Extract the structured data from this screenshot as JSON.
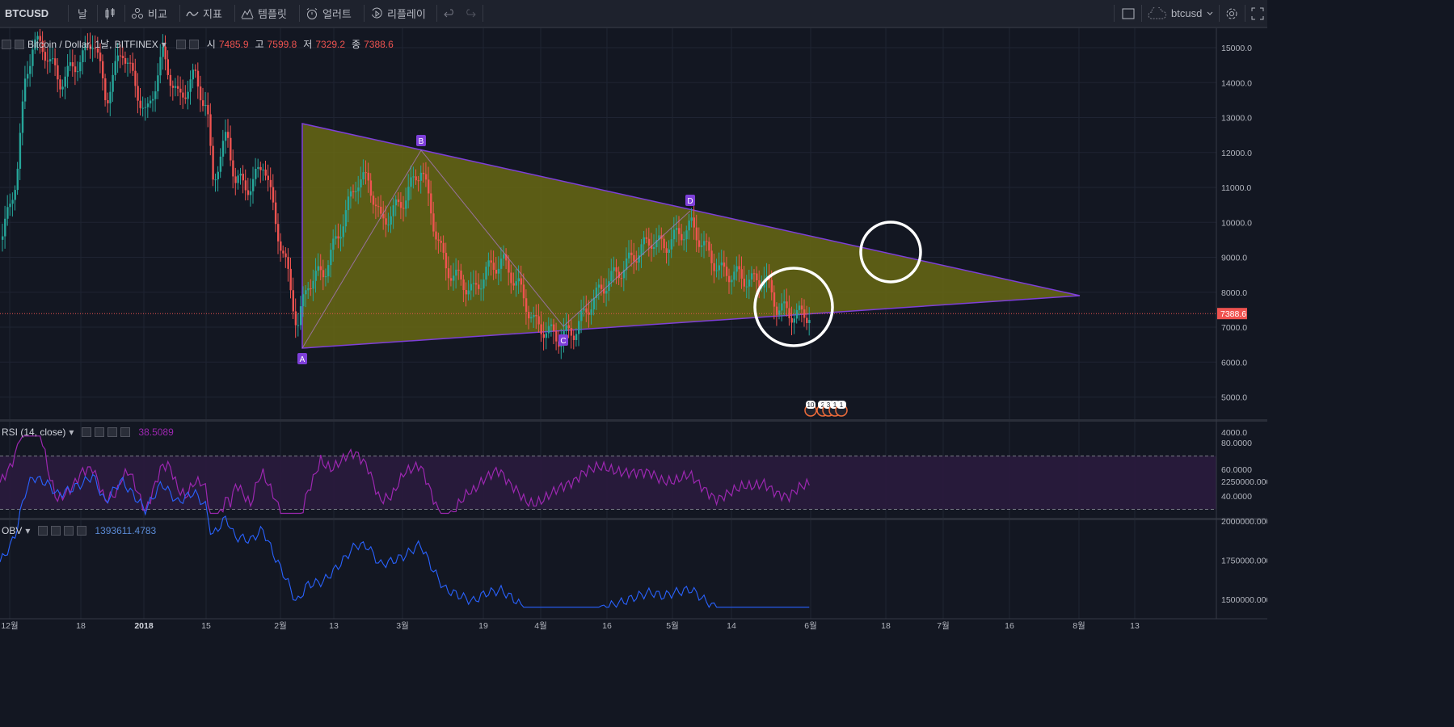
{
  "toolbar": {
    "symbol": "BTCUSD",
    "interval": "날",
    "compare": "비교",
    "indicators": "지표",
    "templates": "템플릿",
    "alerts": "얼러트",
    "replay": "리플레이",
    "account": "btcusd"
  },
  "main_pane": {
    "title": "Bitcoin / Dollar, 1날, BITFINEX",
    "ohlc": [
      {
        "label": "시",
        "value": "7485.9"
      },
      {
        "label": "고",
        "value": "7599.8"
      },
      {
        "label": "저",
        "value": "7329.2"
      },
      {
        "label": "종",
        "value": "7388.6"
      }
    ],
    "price_badge": "7388.6",
    "price_ticks": [
      "15000.0",
      "14000.0",
      "13000.0",
      "12000.0",
      "11000.0",
      "10000.0",
      "9000.0",
      "8000.0",
      "7000.0",
      "6000.0",
      "5000.0",
      "4000.0"
    ],
    "pattern_points": [
      "A",
      "B",
      "C",
      "D"
    ],
    "event_badges": [
      "10",
      "2",
      "3",
      "1",
      "1"
    ]
  },
  "rsi_pane": {
    "title": "RSI (14, close)",
    "value": "38.5089",
    "ticks": [
      "80.0000",
      "60.0000",
      "40.0000"
    ]
  },
  "obv_pane": {
    "title": "OBV",
    "value": "1393611.4783",
    "ticks": [
      "2250000.0000",
      "2000000.0000",
      "1750000.0000",
      "1500000.0000"
    ]
  },
  "time_axis": [
    "12월",
    "18",
    "2018",
    "15",
    "2월",
    "13",
    "3월",
    "19",
    "4월",
    "16",
    "5월",
    "14",
    "6월",
    "18",
    "7월",
    "16",
    "8월",
    "13"
  ],
  "colors": {
    "up": "#26a69a",
    "down": "#ef5350",
    "triangle_fill": "#6b6b12",
    "triangle_line": "#7e3fd9",
    "rsi": "#9c27b0",
    "obv": "#2962ff",
    "background": "#131722"
  },
  "chart_data": {
    "type": "candlestick",
    "title": "Bitcoin / Dollar, 1날, BITFINEX",
    "ylim": [
      4000,
      15200
    ],
    "last_price": 7388.6,
    "pattern": {
      "type": "triangle",
      "points": [
        {
          "label": "A",
          "date": "2018-02-06",
          "price": 6000
        },
        {
          "label": "B",
          "date": "2018-03-05",
          "price": 11700
        },
        {
          "label": "C",
          "date": "2018-04-06",
          "price": 6550
        },
        {
          "label": "D",
          "date": "2018-05-06",
          "price": 9950
        }
      ]
    },
    "series": [
      {
        "name": "RSI (14, close)",
        "last": 38.5089,
        "levels": [
          70,
          30
        ]
      },
      {
        "name": "OBV",
        "last": 1393611.4783
      }
    ]
  }
}
